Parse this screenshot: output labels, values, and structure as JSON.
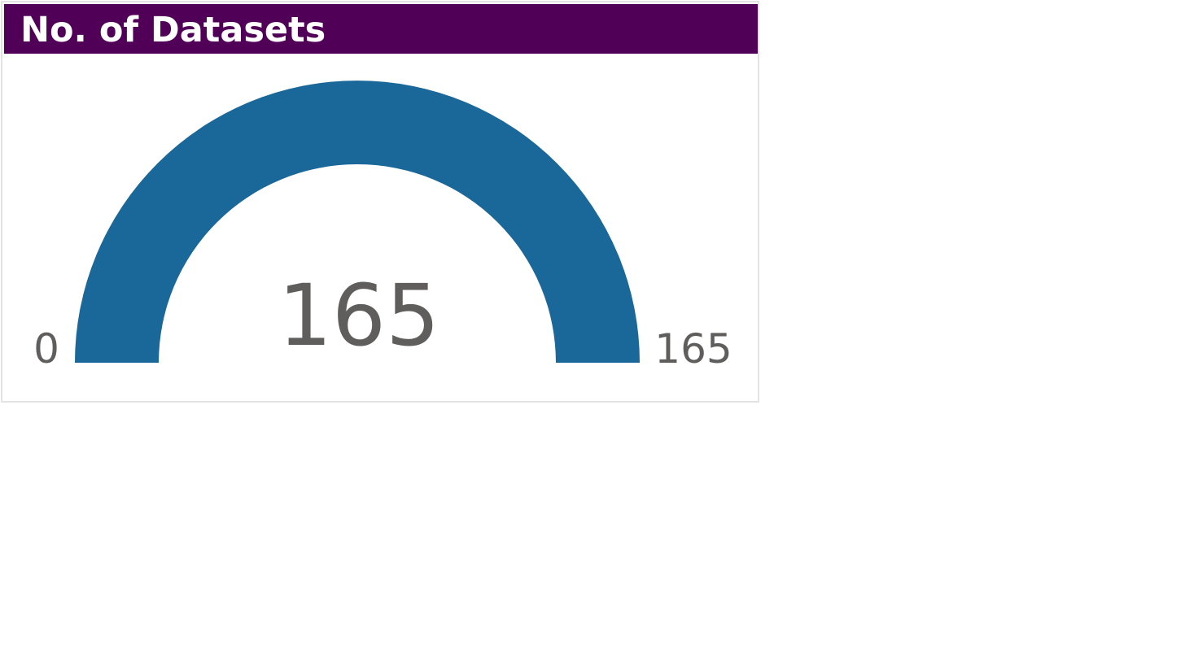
{
  "card": {
    "title": "No. of Datasets"
  },
  "chart_data": {
    "type": "gauge",
    "value": 165,
    "min": 0,
    "max": 165,
    "value_label": "165",
    "min_label": "0",
    "max_label": "165"
  },
  "colors": {
    "header_background": "#510058",
    "header_text": "#ffffff",
    "gauge_fill": "#1a6899",
    "gauge_track": "#e6e6e6",
    "label_text": "#605e5c",
    "card_border": "#e3e3e3"
  }
}
